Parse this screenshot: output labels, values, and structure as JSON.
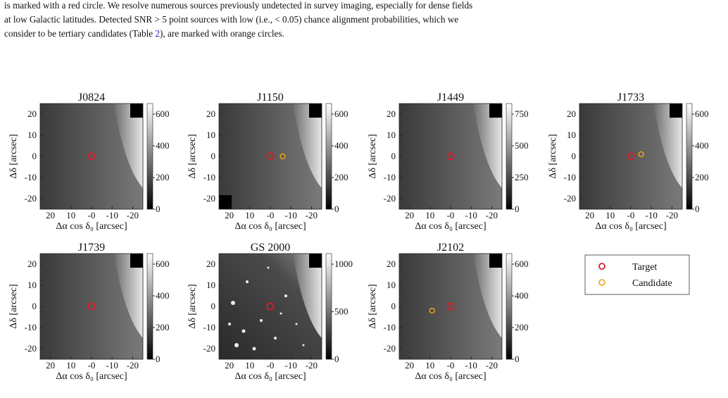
{
  "caption": {
    "lines": [
      "is marked with a red circle. We resolve numerous sources previously undetected in survey imaging, especially for dense fields",
      "at low Galactic latitudes. Detected SNR > 5 point sources with low (i.e., < 0.05) chance alignment probabilities, which we",
      [
        "consider to be tertiary candidates (Table ",
        "2",
        "), are marked with orange circles."
      ]
    ]
  },
  "axes": {
    "x_label": "Δα cos δ₀ [arcsec]",
    "y_label": "Δδ [arcsec]",
    "x_ticks": [
      "20",
      "10",
      "-0",
      "-10",
      "-20"
    ],
    "y_ticks": [
      "20",
      "10",
      "0",
      "-10",
      "-20"
    ]
  },
  "panels": [
    {
      "title": "J0824",
      "colorbar_ticks": [
        "0",
        "200",
        "400",
        "600"
      ]
    },
    {
      "title": "J1150",
      "colorbar_ticks": [
        "0",
        "200",
        "400",
        "600"
      ]
    },
    {
      "title": "J1449",
      "colorbar_ticks": [
        "0",
        "250",
        "500",
        "750"
      ]
    },
    {
      "title": "J1733",
      "colorbar_ticks": [
        "0",
        "200",
        "400",
        "600"
      ]
    },
    {
      "title": "J1739",
      "colorbar_ticks": [
        "0",
        "200",
        "400",
        "600"
      ]
    },
    {
      "title": "GS 2000",
      "colorbar_ticks": [
        "0",
        "500",
        "1000"
      ]
    },
    {
      "title": "J2102",
      "colorbar_ticks": [
        "0",
        "200",
        "400",
        "600"
      ]
    }
  ],
  "legend": {
    "entries": [
      "Target",
      "Candidate"
    ]
  }
}
